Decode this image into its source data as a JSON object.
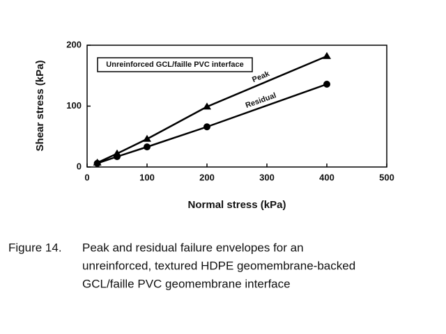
{
  "chart_data": {
    "type": "line",
    "annotation": "Unreinforced GCL/faille PVC interface",
    "xlabel": "Normal stress (kPa)",
    "ylabel": "Shear stress (kPa)",
    "x": [
      17,
      50,
      100,
      200,
      400
    ],
    "series": [
      {
        "name": "Peak",
        "color": "#000000",
        "marker": "triangle",
        "values": [
          7,
          22,
          46,
          99,
          182
        ]
      },
      {
        "name": "Residual",
        "color": "#000000",
        "marker": "circle",
        "values": [
          6,
          17,
          33,
          66,
          136
        ]
      }
    ],
    "xlim": [
      0,
      500
    ],
    "xticks": [
      0,
      100,
      200,
      300,
      400,
      500
    ],
    "ylim": [
      0,
      200
    ],
    "yticks": [
      0,
      100,
      200
    ],
    "grid": false
  },
  "caption": {
    "label": "Figure 14.",
    "lines": [
      "Peak and residual failure envelopes for an",
      "unreinforced, textured HDPE geomembrane-backed",
      "GCL/faille PVC geomembrane interface"
    ]
  }
}
